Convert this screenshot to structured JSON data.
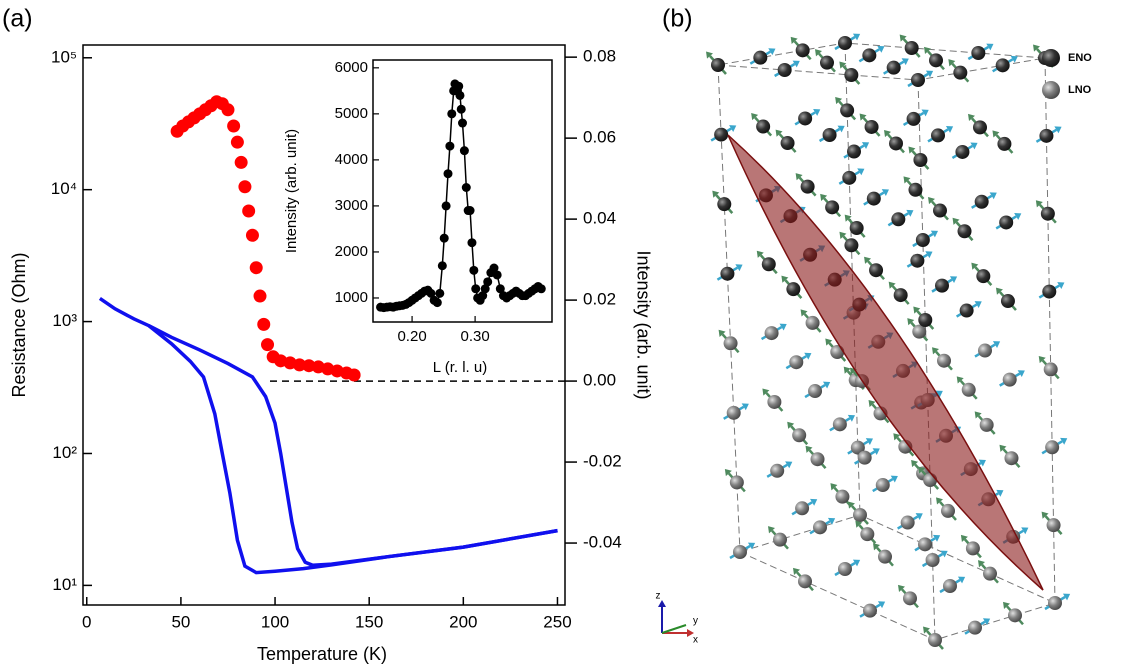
{
  "panels": [
    "(a)",
    "(b)"
  ],
  "chart_data": [
    {
      "type": "line",
      "xlabel": "Temperature (K)",
      "ylabel": "Resistance (Ohm)",
      "y2label": "Intensity (arb. unit)",
      "xlim": [
        -2,
        254
      ],
      "xticks": [
        0,
        50,
        100,
        150,
        200,
        250
      ],
      "ylim": [
        7.1,
        125000
      ],
      "yscale": "log",
      "yticks": [
        {
          "value": 10,
          "label": "10¹"
        },
        {
          "value": 100,
          "label": "10²"
        },
        {
          "value": 1000,
          "label": "10³"
        },
        {
          "value": 10000,
          "label": "10⁴"
        },
        {
          "value": 100000,
          "label": "10⁵"
        }
      ],
      "y2lim": [
        -0.0553,
        0.083
      ],
      "y2ticks": [
        0.08,
        0.06,
        0.04,
        0.02,
        {
          "value": 0,
          "label": "0.00"
        },
        -0.02,
        -0.04
      ],
      "series": [
        {
          "color": "#1010ee",
          "style": "line",
          "x": [
            7,
            15,
            25,
            33,
            45,
            55,
            62,
            68,
            72,
            76,
            80,
            84,
            90,
            100,
            115,
            130,
            160,
            200,
            250
          ],
          "values": [
            1500,
            1250,
            1050,
            930,
            680,
            500,
            380,
            200,
            100,
            50,
            22,
            14,
            12.5,
            12.8,
            13.4,
            14.3,
            16.5,
            19.5,
            26
          ]
        },
        {
          "color": "#1010ee",
          "style": "line",
          "x": [
            33,
            45,
            60,
            75,
            88,
            95,
            100,
            103,
            106,
            109,
            112,
            116,
            120,
            130,
            160,
            200,
            250
          ],
          "values": [
            930,
            760,
            610,
            480,
            380,
            270,
            170,
            100,
            55,
            30,
            19,
            15,
            14.2,
            14.5,
            16.5,
            19.5,
            26
          ]
        },
        {
          "color": "#ff0000",
          "style": "markers",
          "axis": "y2",
          "x": [
            48,
            51,
            54,
            57,
            60,
            63,
            66,
            69,
            72,
            75,
            78,
            80,
            82,
            84,
            86,
            88,
            90,
            92,
            94,
            96,
            99,
            103,
            108,
            113,
            118,
            123,
            128,
            133,
            138,
            142
          ],
          "values": [
            0.0617,
            0.063,
            0.064,
            0.065,
            0.066,
            0.067,
            0.068,
            0.069,
            0.0685,
            0.067,
            0.063,
            0.059,
            0.054,
            0.048,
            0.042,
            0.036,
            0.028,
            0.021,
            0.014,
            0.009,
            0.006,
            0.005,
            0.0045,
            0.004,
            0.0038,
            0.0035,
            0.003,
            0.0025,
            0.002,
            0.0015
          ]
        }
      ]
    },
    {
      "type": "line",
      "style": "line+markers",
      "color": "#000000",
      "xlabel": "L (r. l. u)",
      "ylabel": "Intensity (arb. unit)",
      "xlim": [
        0.138,
        0.422
      ],
      "xticks": [
        {
          "value": 0.2,
          "label": "0.20"
        },
        {
          "value": 0.3,
          "label": "0.30"
        }
      ],
      "ylim": [
        478,
        6170
      ],
      "yticks": [
        1000,
        2000,
        3000,
        4000,
        5000,
        6000
      ],
      "x": [
        0.15,
        0.155,
        0.16,
        0.165,
        0.17,
        0.175,
        0.18,
        0.185,
        0.19,
        0.195,
        0.2,
        0.205,
        0.21,
        0.215,
        0.22,
        0.225,
        0.23,
        0.235,
        0.24,
        0.244,
        0.248,
        0.251,
        0.254,
        0.257,
        0.26,
        0.263,
        0.266,
        0.268,
        0.27,
        0.272,
        0.274,
        0.276,
        0.278,
        0.28,
        0.283,
        0.286,
        0.289,
        0.292,
        0.295,
        0.298,
        0.301,
        0.304,
        0.308,
        0.312,
        0.316,
        0.32,
        0.325,
        0.33,
        0.335,
        0.34,
        0.345,
        0.35,
        0.355,
        0.36,
        0.365,
        0.37,
        0.375,
        0.38,
        0.385,
        0.39,
        0.395,
        0.4,
        0.405
      ],
      "values": [
        800,
        790,
        800,
        810,
        800,
        820,
        830,
        840,
        860,
        900,
        950,
        1000,
        1050,
        1100,
        1150,
        1170,
        1100,
        950,
        900,
        1100,
        1700,
        2300,
        3000,
        3700,
        4300,
        5000,
        5500,
        5650,
        5620,
        5500,
        5600,
        5400,
        5100,
        4800,
        4200,
        3400,
        2900,
        2900,
        2200,
        1600,
        1200,
        1000,
        950,
        1050,
        1200,
        1350,
        1550,
        1650,
        1500,
        1200,
        1050,
        1000,
        1050,
        1100,
        1150,
        1100,
        1050,
        1050,
        1100,
        1150,
        1200,
        1250,
        1200
      ]
    }
  ],
  "structure": {
    "legend": [
      "ENO",
      "LNO"
    ],
    "axes": [
      "z",
      "y",
      "x"
    ]
  }
}
